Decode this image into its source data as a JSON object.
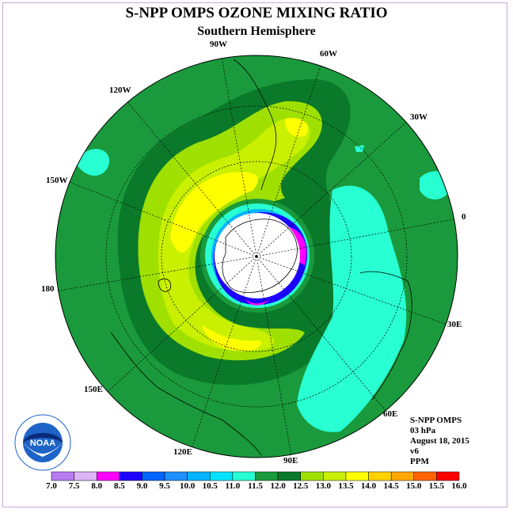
{
  "title": "S-NPP OMPS OZONE MIXING RATIO",
  "subtitle": "Southern Hemisphere",
  "longitude_labels": [
    "90W",
    "60W",
    "30W",
    "0",
    "30E",
    "60E",
    "90E",
    "120E",
    "150E",
    "180",
    "150W",
    "120W"
  ],
  "info": {
    "instrument": "S-NPP OMPS",
    "level": "03 hPa",
    "date": "August 18, 2015",
    "version": "v6",
    "units": "PPM"
  },
  "logo": {
    "text": "NOAA"
  },
  "colorbar": {
    "ticks": [
      "7.0",
      "7.5",
      "8.0",
      "8.5",
      "9.0",
      "9.5",
      "10.0",
      "10.5",
      "11.0",
      "11.5",
      "12.0",
      "12.5",
      "13.0",
      "13.5",
      "14.0",
      "14.5",
      "15.0",
      "15.5",
      "16.0"
    ],
    "colors": [
      "#b77cf2",
      "#dcb4f5",
      "#ff00ff",
      "#1e00ff",
      "#0064ff",
      "#1e90ff",
      "#00b4ff",
      "#00e4ff",
      "#28ffd2",
      "#1a9a3c",
      "#0a7a2a",
      "#a0e000",
      "#c8f000",
      "#ffff00",
      "#ffd200",
      "#ffa800",
      "#ff6400",
      "#ff0000",
      "#8b5a3c"
    ]
  },
  "colors": {
    "ocean_base": "#1a9a3c",
    "band_dark": "#0a7a2a",
    "band_light_yellow_green": "#c8f000",
    "band_yellow": "#ffff00",
    "low_cyan": "#28ffd2",
    "polar_blue": "#1e00ff",
    "polar_magenta": "#ff00ff",
    "polar_mask": "#ffffff"
  }
}
